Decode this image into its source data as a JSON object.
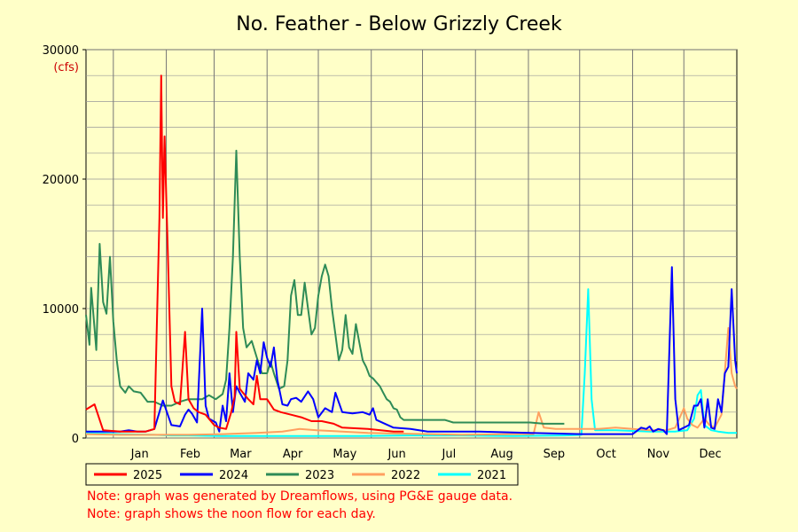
{
  "chart_data": {
    "type": "line",
    "title": "No. Feather - Below Grizzly Creek",
    "ylabel": "(cfs)",
    "ylim": [
      0,
      30000
    ],
    "yticks": [
      "0",
      "10000",
      "20000",
      "30000"
    ],
    "months": [
      "Jan",
      "Feb",
      "Mar",
      "Apr",
      "May",
      "Jun",
      "Jul",
      "Aug",
      "Sep",
      "Oct",
      "Nov",
      "Dec"
    ],
    "grid": true,
    "legend_position": "bottom",
    "series": [
      {
        "name": "2025",
        "color": "#ff0000",
        "points": [
          [
            0,
            2200
          ],
          [
            5,
            2600
          ],
          [
            10,
            600
          ],
          [
            20,
            500
          ],
          [
            35,
            500
          ],
          [
            40,
            700
          ],
          [
            43,
            17000
          ],
          [
            44,
            28000
          ],
          [
            45,
            17000
          ],
          [
            46,
            23300
          ],
          [
            48,
            13800
          ],
          [
            50,
            4000
          ],
          [
            52,
            2800
          ],
          [
            55,
            2600
          ],
          [
            58,
            8200
          ],
          [
            60,
            3000
          ],
          [
            63,
            2300
          ],
          [
            66,
            2000
          ],
          [
            70,
            1800
          ],
          [
            75,
            1000
          ],
          [
            78,
            800
          ],
          [
            82,
            700
          ],
          [
            85,
            2000
          ],
          [
            87,
            3200
          ],
          [
            88,
            8200
          ],
          [
            90,
            3800
          ],
          [
            95,
            3000
          ],
          [
            98,
            2600
          ],
          [
            100,
            4800
          ],
          [
            102,
            3000
          ],
          [
            106,
            3000
          ],
          [
            110,
            2200
          ],
          [
            114,
            2000
          ],
          [
            120,
            1800
          ],
          [
            126,
            1600
          ],
          [
            132,
            1300
          ],
          [
            138,
            1300
          ],
          [
            145,
            1100
          ],
          [
            150,
            800
          ],
          [
            165,
            700
          ],
          [
            180,
            500
          ],
          [
            186,
            500
          ]
        ]
      },
      {
        "name": "2024",
        "color": "#0000ff",
        "points": [
          [
            0,
            500
          ],
          [
            10,
            500
          ],
          [
            20,
            500
          ],
          [
            25,
            600
          ],
          [
            30,
            500
          ],
          [
            35,
            500
          ],
          [
            40,
            700
          ],
          [
            45,
            2900
          ],
          [
            50,
            1000
          ],
          [
            55,
            900
          ],
          [
            58,
            1800
          ],
          [
            60,
            2200
          ],
          [
            62,
            1900
          ],
          [
            65,
            1200
          ],
          [
            68,
            10000
          ],
          [
            70,
            2500
          ],
          [
            72,
            1500
          ],
          [
            76,
            1200
          ],
          [
            78,
            500
          ],
          [
            80,
            2500
          ],
          [
            82,
            1300
          ],
          [
            84,
            5000
          ],
          [
            86,
            2000
          ],
          [
            88,
            4000
          ],
          [
            90,
            3500
          ],
          [
            93,
            2800
          ],
          [
            95,
            5000
          ],
          [
            98,
            4500
          ],
          [
            100,
            6000
          ],
          [
            102,
            5000
          ],
          [
            104,
            7400
          ],
          [
            106,
            6200
          ],
          [
            108,
            5500
          ],
          [
            110,
            7000
          ],
          [
            112,
            4500
          ],
          [
            115,
            2600
          ],
          [
            118,
            2500
          ],
          [
            120,
            3000
          ],
          [
            123,
            3100
          ],
          [
            126,
            2800
          ],
          [
            130,
            3600
          ],
          [
            133,
            3000
          ],
          [
            136,
            1600
          ],
          [
            140,
            2300
          ],
          [
            144,
            2000
          ],
          [
            146,
            3500
          ],
          [
            150,
            2000
          ],
          [
            156,
            1900
          ],
          [
            162,
            2000
          ],
          [
            166,
            1800
          ],
          [
            168,
            2300
          ],
          [
            170,
            1400
          ],
          [
            175,
            1100
          ],
          [
            180,
            800
          ],
          [
            190,
            700
          ],
          [
            200,
            500
          ],
          [
            230,
            500
          ],
          [
            260,
            400
          ],
          [
            290,
            300
          ],
          [
            320,
            300
          ],
          [
            325,
            800
          ],
          [
            328,
            700
          ],
          [
            330,
            900
          ],
          [
            332,
            500
          ],
          [
            335,
            700
          ],
          [
            338,
            600
          ],
          [
            340,
            300
          ],
          [
            343,
            13200
          ],
          [
            345,
            3000
          ],
          [
            347,
            600
          ],
          [
            350,
            800
          ],
          [
            353,
            1000
          ],
          [
            356,
            2500
          ],
          [
            358,
            2500
          ],
          [
            360,
            3000
          ],
          [
            362,
            800
          ],
          [
            364,
            3000
          ],
          [
            366,
            800
          ],
          [
            368,
            700
          ],
          [
            370,
            3000
          ],
          [
            372,
            2000
          ],
          [
            374,
            5000
          ],
          [
            376,
            5500
          ],
          [
            378,
            11500
          ],
          [
            380,
            6000
          ],
          [
            381,
            5000
          ]
        ]
      },
      {
        "name": "2023",
        "color": "#2e8b57",
        "points": [
          [
            0,
            9500
          ],
          [
            2,
            7200
          ],
          [
            3,
            11600
          ],
          [
            5,
            8500
          ],
          [
            6,
            6800
          ],
          [
            8,
            15000
          ],
          [
            10,
            10500
          ],
          [
            12,
            9600
          ],
          [
            14,
            14000
          ],
          [
            16,
            9000
          ],
          [
            18,
            6000
          ],
          [
            20,
            4000
          ],
          [
            23,
            3500
          ],
          [
            25,
            4000
          ],
          [
            28,
            3600
          ],
          [
            32,
            3500
          ],
          [
            36,
            2800
          ],
          [
            40,
            2800
          ],
          [
            45,
            2500
          ],
          [
            50,
            2500
          ],
          [
            55,
            2800
          ],
          [
            60,
            3000
          ],
          [
            68,
            3000
          ],
          [
            72,
            3300
          ],
          [
            76,
            3000
          ],
          [
            80,
            3400
          ],
          [
            82,
            4500
          ],
          [
            84,
            8500
          ],
          [
            86,
            14000
          ],
          [
            88,
            22200
          ],
          [
            90,
            14000
          ],
          [
            92,
            8500
          ],
          [
            94,
            7000
          ],
          [
            97,
            7500
          ],
          [
            100,
            6200
          ],
          [
            103,
            5000
          ],
          [
            106,
            5000
          ],
          [
            108,
            5900
          ],
          [
            110,
            5000
          ],
          [
            113,
            3800
          ],
          [
            116,
            4000
          ],
          [
            118,
            6000
          ],
          [
            120,
            11000
          ],
          [
            122,
            12200
          ],
          [
            124,
            9500
          ],
          [
            126,
            9500
          ],
          [
            128,
            12000
          ],
          [
            130,
            10000
          ],
          [
            132,
            8000
          ],
          [
            134,
            8500
          ],
          [
            136,
            11000
          ],
          [
            138,
            12500
          ],
          [
            140,
            13400
          ],
          [
            142,
            12500
          ],
          [
            144,
            10000
          ],
          [
            146,
            8000
          ],
          [
            148,
            6000
          ],
          [
            150,
            6800
          ],
          [
            152,
            9500
          ],
          [
            154,
            7000
          ],
          [
            156,
            6500
          ],
          [
            158,
            8800
          ],
          [
            160,
            7400
          ],
          [
            162,
            6000
          ],
          [
            164,
            5500
          ],
          [
            166,
            4800
          ],
          [
            168,
            4600
          ],
          [
            170,
            4300
          ],
          [
            172,
            4000
          ],
          [
            174,
            3500
          ],
          [
            176,
            3000
          ],
          [
            178,
            2800
          ],
          [
            180,
            2300
          ],
          [
            182,
            2200
          ],
          [
            184,
            1600
          ],
          [
            186,
            1400
          ],
          [
            200,
            1400
          ],
          [
            210,
            1400
          ],
          [
            215,
            1200
          ],
          [
            240,
            1200
          ],
          [
            260,
            1200
          ],
          [
            268,
            1100
          ],
          [
            280,
            1100
          ]
        ]
      },
      {
        "name": "2022",
        "color": "#ffa060",
        "points": [
          [
            0,
            300
          ],
          [
            20,
            250
          ],
          [
            40,
            250
          ],
          [
            60,
            250
          ],
          [
            80,
            300
          ],
          [
            100,
            400
          ],
          [
            115,
            500
          ],
          [
            125,
            700
          ],
          [
            135,
            600
          ],
          [
            150,
            500
          ],
          [
            165,
            400
          ],
          [
            180,
            350
          ],
          [
            200,
            300
          ],
          [
            220,
            250
          ],
          [
            250,
            300
          ],
          [
            262,
            300
          ],
          [
            265,
            2000
          ],
          [
            268,
            800
          ],
          [
            275,
            700
          ],
          [
            290,
            700
          ],
          [
            300,
            700
          ],
          [
            310,
            800
          ],
          [
            320,
            700
          ],
          [
            330,
            600
          ],
          [
            340,
            600
          ],
          [
            345,
            800
          ],
          [
            350,
            2300
          ],
          [
            352,
            1500
          ],
          [
            355,
            1000
          ],
          [
            358,
            800
          ],
          [
            362,
            1500
          ],
          [
            365,
            1000
          ],
          [
            368,
            800
          ],
          [
            372,
            1800
          ],
          [
            376,
            8500
          ],
          [
            378,
            5000
          ],
          [
            380,
            4000
          ],
          [
            381,
            3800
          ]
        ]
      },
      {
        "name": "2021",
        "color": "#00ffff",
        "points": [
          [
            0,
            400
          ],
          [
            20,
            300
          ],
          [
            40,
            250
          ],
          [
            50,
            200
          ],
          [
            60,
            200
          ],
          [
            80,
            150
          ],
          [
            100,
            150
          ],
          [
            130,
            150
          ],
          [
            160,
            150
          ],
          [
            190,
            200
          ],
          [
            220,
            200
          ],
          [
            250,
            150
          ],
          [
            280,
            200
          ],
          [
            290,
            250
          ],
          [
            292,
            5000
          ],
          [
            294,
            11500
          ],
          [
            296,
            3000
          ],
          [
            298,
            600
          ],
          [
            310,
            600
          ],
          [
            330,
            500
          ],
          [
            345,
            500
          ],
          [
            352,
            600
          ],
          [
            356,
            1500
          ],
          [
            358,
            3300
          ],
          [
            360,
            3700
          ],
          [
            362,
            1000
          ],
          [
            366,
            600
          ],
          [
            370,
            500
          ],
          [
            376,
            400
          ],
          [
            381,
            400
          ]
        ]
      }
    ],
    "notes": [
      "Note: graph was generated by Dreamflows, using PG&E gauge data.",
      "Note: graph shows the noon flow for each day."
    ]
  }
}
